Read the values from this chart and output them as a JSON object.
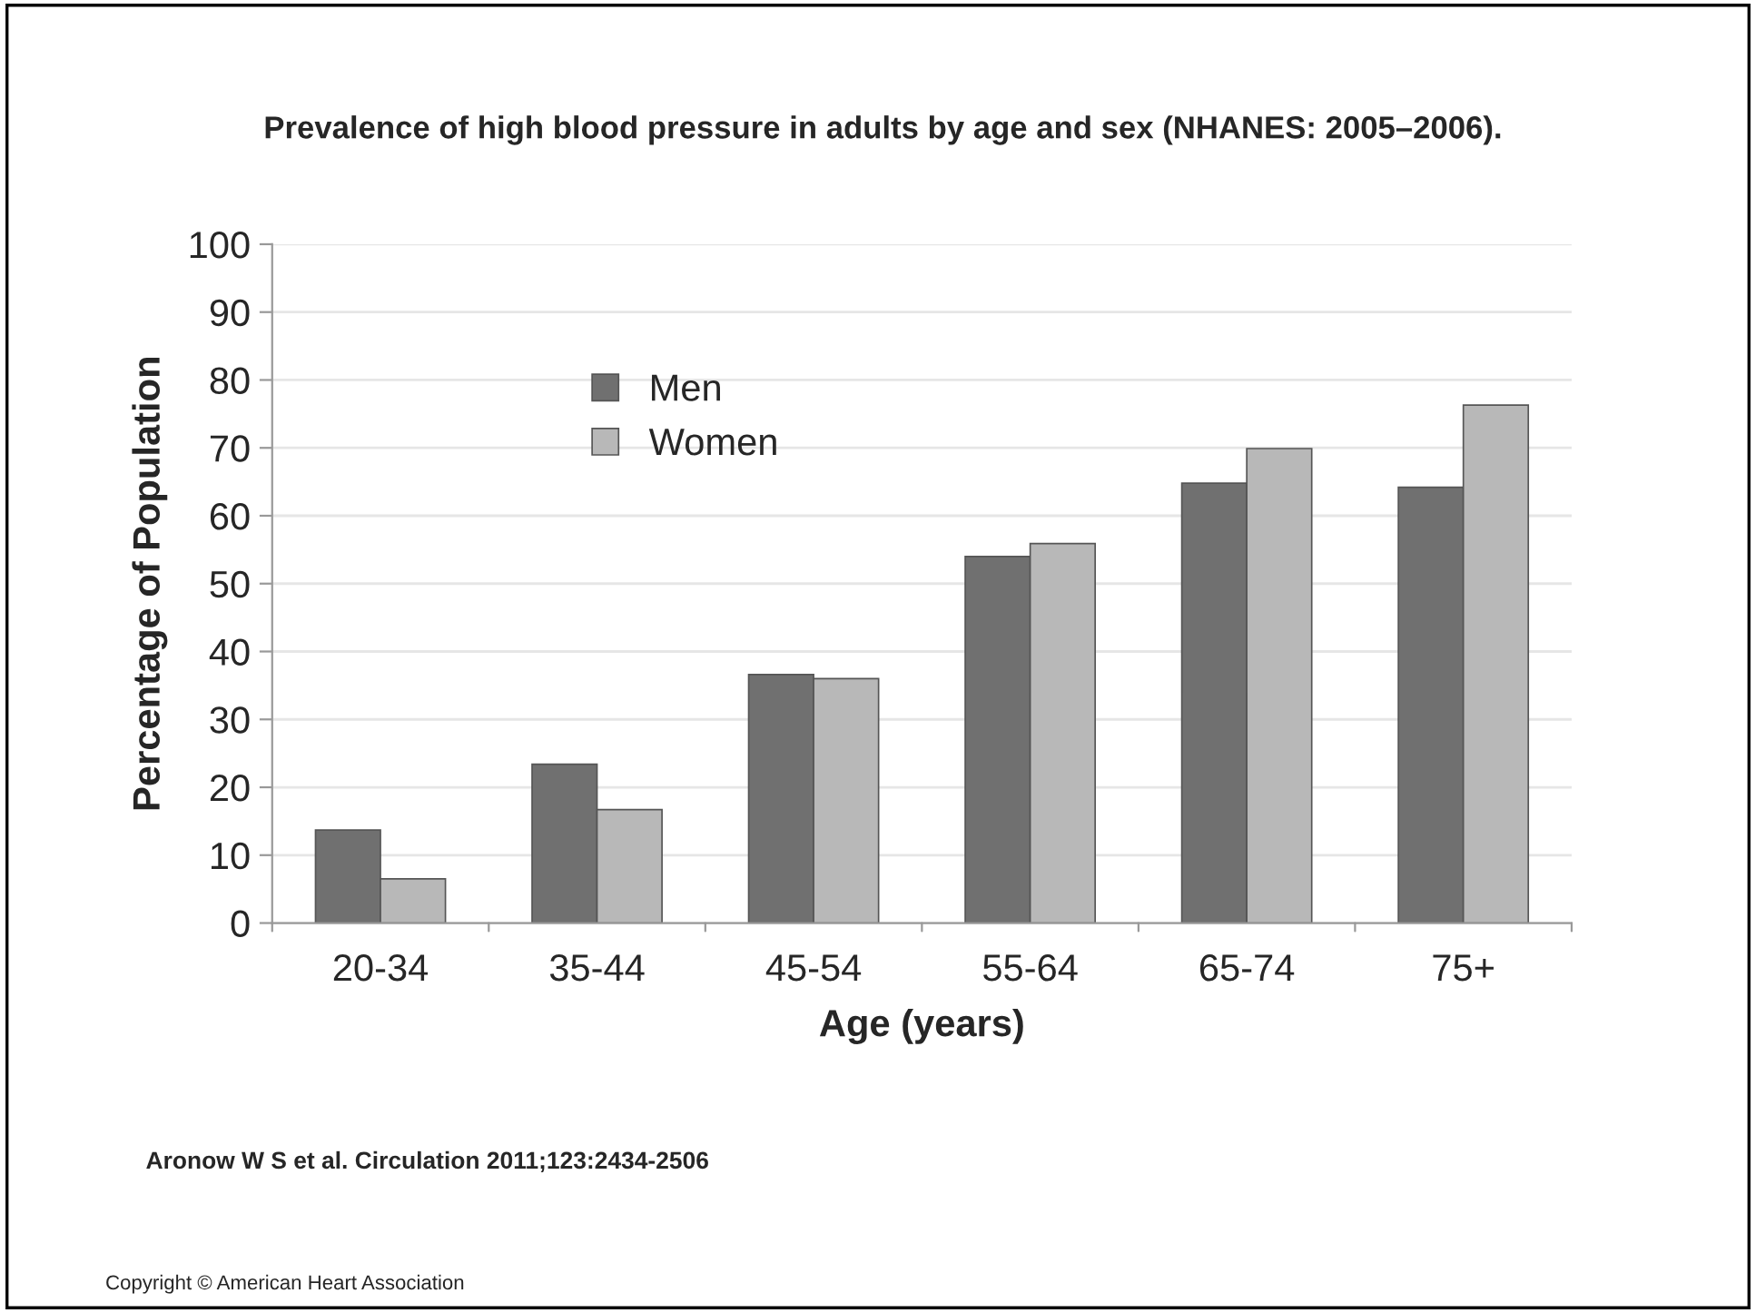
{
  "chart_data": {
    "type": "bar",
    "title": "Prevalence of high blood pressure in adults by age and sex (NHANES: 2005–2006).",
    "xlabel": "Age (years)",
    "ylabel": "Percentage of Population",
    "categories": [
      "20-34",
      "35-44",
      "45-54",
      "55-64",
      "65-74",
      "75+"
    ],
    "series": [
      {
        "name": "Men",
        "color": "#707070",
        "values": [
          13.7,
          23.4,
          36.6,
          54.0,
          64.8,
          64.2
        ]
      },
      {
        "name": "Women",
        "color": "#b8b8b8",
        "values": [
          6.5,
          16.7,
          36.0,
          55.9,
          69.9,
          76.3
        ]
      }
    ],
    "ylim": [
      0,
      100
    ],
    "yticks": [
      0,
      10,
      20,
      30,
      40,
      50,
      60,
      70,
      80,
      90,
      100
    ],
    "grid": "y",
    "legend": "top left",
    "annotations": [
      "Aronow W S et al. Circulation 2011;123:2434-2506",
      "Copyright © American Heart Association"
    ]
  }
}
